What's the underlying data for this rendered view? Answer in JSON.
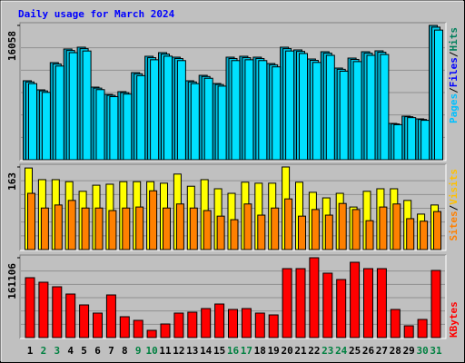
{
  "title": "Daily usage for March 2024",
  "categories": [
    "1",
    "2",
    "3",
    "4",
    "5",
    "6",
    "7",
    "8",
    "9",
    "10",
    "11",
    "12",
    "13",
    "14",
    "15",
    "16",
    "17",
    "18",
    "19",
    "20",
    "21",
    "22",
    "23",
    "24",
    "25",
    "26",
    "27",
    "28",
    "29",
    "30",
    "31"
  ],
  "category_colors": [
    "#000000",
    "#008040",
    "#008040",
    "#000000",
    "#000000",
    "#000000",
    "#000000",
    "#000000",
    "#008040",
    "#008040",
    "#000000",
    "#000000",
    "#000000",
    "#000000",
    "#000000",
    "#008040",
    "#008040",
    "#000000",
    "#000000",
    "#000000",
    "#000000",
    "#000000",
    "#008040",
    "#008040",
    "#000000",
    "#000000",
    "#000000",
    "#000000",
    "#000000",
    "#008040",
    "#008040"
  ],
  "separator": "/",
  "chart_data": [
    {
      "type": "bar",
      "ylim": [
        0,
        16058
      ],
      "yticks": [
        16058
      ],
      "series": [
        {
          "name": "Hits",
          "color": "#00a8c8",
          "label_color": "#00805c",
          "values": [
            9440,
            8355,
            11610,
            13237,
            13454,
            8680,
            7812,
            8138,
            10416,
            12369,
            12803,
            12260,
            9440,
            10090,
            9114,
            12260,
            12369,
            12260,
            11501,
            13454,
            13128,
            12043,
            12911,
            10958,
            12152,
            12911,
            13020,
            4340,
            5208,
            4882,
            16058
          ]
        },
        {
          "name": "Files",
          "color": "#00c8e8",
          "label_color": "#0000ff",
          "values": [
            9300,
            8230,
            11450,
            13060,
            13280,
            8560,
            7700,
            8020,
            10270,
            12200,
            12630,
            12100,
            9300,
            9950,
            8990,
            12100,
            12200,
            12100,
            11350,
            13280,
            12950,
            11880,
            12740,
            10810,
            11990,
            12740,
            12850,
            4280,
            5140,
            4810,
            15850
          ]
        },
        {
          "name": "Pages",
          "color": "#00e0ff",
          "label_color": "#00c0ff",
          "values": [
            9100,
            8050,
            11200,
            12800,
            13000,
            8380,
            7540,
            7850,
            10050,
            11950,
            12380,
            11850,
            9100,
            9740,
            8800,
            11850,
            11950,
            11850,
            11100,
            13000,
            12700,
            11630,
            12480,
            10580,
            11730,
            12480,
            12580,
            4190,
            5030,
            4710,
            15500
          ]
        }
      ]
    },
    {
      "type": "bar",
      "ylim": [
        0,
        163
      ],
      "yticks": [
        163
      ],
      "series": [
        {
          "name": "Visits",
          "color": "#ffff00",
          "label_color": "#ffc000",
          "values": [
            161,
            138,
            138,
            134,
            115,
            127,
            129,
            134,
            134,
            134,
            131,
            149,
            125,
            138,
            120,
            111,
            133,
            131,
            131,
            163,
            133,
            113,
            102,
            111,
            84,
            115,
            120,
            120,
            97,
            70,
            88
          ]
        },
        {
          "name": "Sites",
          "color": "#ff8000",
          "label_color": "#ff8000",
          "values": [
            111,
            82,
            88,
            97,
            82,
            82,
            77,
            82,
            84,
            116,
            82,
            90,
            82,
            77,
            66,
            59,
            90,
            68,
            82,
            100,
            66,
            79,
            68,
            91,
            79,
            57,
            84,
            90,
            61,
            56,
            75
          ]
        }
      ]
    },
    {
      "type": "bar",
      "ylim": [
        0,
        161106
      ],
      "yticks": [
        161106
      ],
      "series": [
        {
          "name": "KBytes",
          "color": "#ff0000",
          "label_color": "#ff0000",
          "values": [
            120826,
            111673,
            102519,
            87874,
            65905,
            49429,
            86043,
            42106,
            34783,
            14646,
            27461,
            49429,
            51260,
            58582,
            67736,
            56752,
            58582,
            49429,
            45768,
            139133,
            139133,
            161106,
            129980,
            117165,
            151948,
            139133,
            139133,
            56752,
            23799,
            36614,
            135472
          ]
        }
      ]
    }
  ]
}
